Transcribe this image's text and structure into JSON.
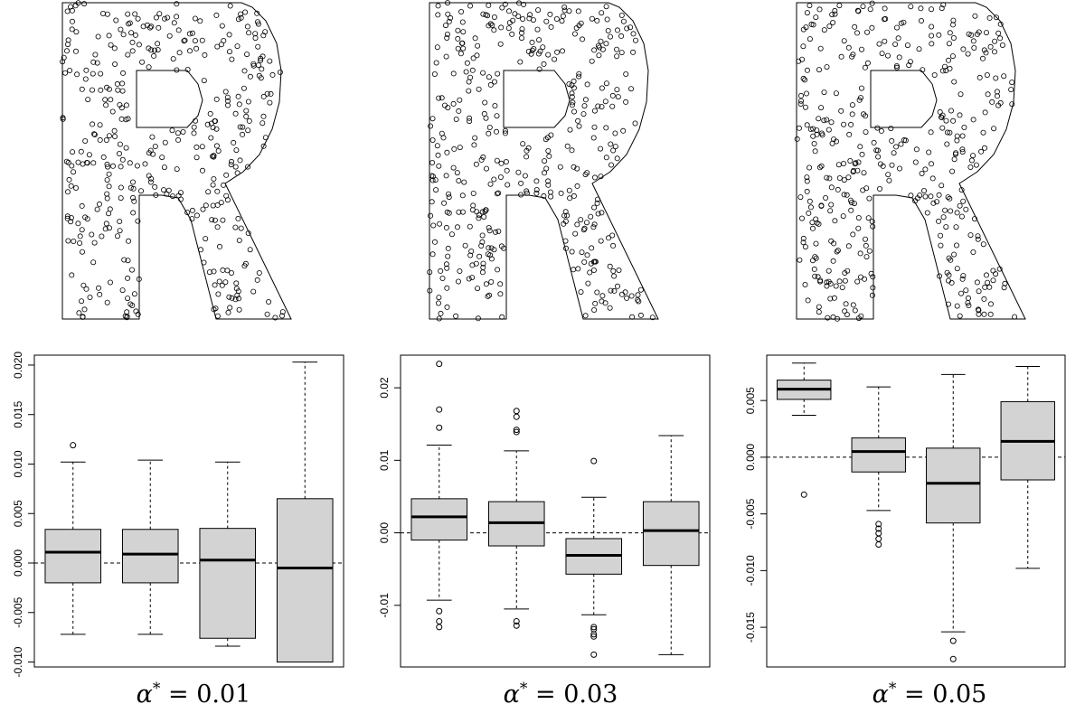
{
  "panels": [
    {
      "caption_symbol": "α",
      "caption_sup": "*",
      "caption_rest": " = 0.01"
    },
    {
      "caption_symbol": "α",
      "caption_sup": "*",
      "caption_rest": " = 0.03"
    },
    {
      "caption_symbol": "α",
      "caption_sup": "*",
      "caption_rest": " = 0.05"
    }
  ],
  "chart_data": [
    {
      "type": "scatter",
      "title": "",
      "description": "uniform point pattern inside R-shaped window",
      "n_points_approx": 400,
      "marker": "open-circle",
      "window_shape": "R",
      "seed": 11
    },
    {
      "type": "scatter",
      "title": "",
      "description": "uniform point pattern inside R-shaped window",
      "n_points_approx": 420,
      "marker": "open-circle",
      "window_shape": "R",
      "seed": 23
    },
    {
      "type": "scatter",
      "title": "",
      "description": "uniform point pattern inside R-shaped window",
      "n_points_approx": 410,
      "marker": "open-circle",
      "window_shape": "R",
      "seed": 37
    },
    {
      "type": "box",
      "ylim": [
        -0.0105,
        0.021
      ],
      "yticks": [
        -0.01,
        -0.005,
        0.0,
        0.005,
        0.01,
        0.015,
        0.02
      ],
      "ytick_labels": [
        "-0.010",
        "-0.005",
        "0.000",
        "0.005",
        "0.010",
        "0.015",
        "0.020"
      ],
      "reference_line": 0,
      "fill": "#d3d3d3",
      "boxes": [
        {
          "lower_whisker": -0.0072,
          "q1": -0.002,
          "median": 0.0011,
          "q3": 0.0034,
          "upper_whisker": 0.0102,
          "outliers": [
            0.0119
          ]
        },
        {
          "lower_whisker": -0.0072,
          "q1": -0.002,
          "median": 0.0009,
          "q3": 0.0034,
          "upper_whisker": 0.0104,
          "outliers": []
        },
        {
          "lower_whisker": -0.0084,
          "q1": -0.0076,
          "median": 0.0003,
          "q3": 0.0035,
          "upper_whisker": 0.0102,
          "outliers": []
        },
        {
          "lower_whisker": -0.01,
          "q1": -0.01,
          "median": -0.0005,
          "q3": 0.0065,
          "upper_whisker": 0.0203,
          "outliers": []
        }
      ]
    },
    {
      "type": "box",
      "ylim": [
        -0.0185,
        0.0245
      ],
      "yticks": [
        -0.01,
        0.0,
        0.01,
        0.02
      ],
      "ytick_labels": [
        "-0.01",
        "0.00",
        "0.01",
        "0.02"
      ],
      "reference_line": 0,
      "fill": "#d3d3d3",
      "boxes": [
        {
          "lower_whisker": -0.0093,
          "q1": -0.001,
          "median": 0.0022,
          "q3": 0.0047,
          "upper_whisker": 0.0121,
          "outliers": [
            0.0233,
            0.017,
            0.0145,
            -0.0122,
            -0.013,
            -0.0108
          ]
        },
        {
          "lower_whisker": -0.0105,
          "q1": -0.0018,
          "median": 0.0014,
          "q3": 0.0043,
          "upper_whisker": 0.0113,
          "outliers": [
            0.0168,
            0.016,
            0.0142,
            0.0139,
            -0.0122,
            -0.0128
          ]
        },
        {
          "lower_whisker": -0.0113,
          "q1": -0.0057,
          "median": -0.0031,
          "q3": -0.0008,
          "upper_whisker": 0.0049,
          "outliers": [
            0.0099,
            -0.013,
            -0.0133,
            -0.014,
            -0.0143,
            -0.0168
          ]
        },
        {
          "lower_whisker": -0.0168,
          "q1": -0.0045,
          "median": 0.0003,
          "q3": 0.0043,
          "upper_whisker": 0.0134,
          "outliers": []
        }
      ]
    },
    {
      "type": "box",
      "ylim": [
        -0.0185,
        0.009
      ],
      "yticks": [
        -0.015,
        -0.01,
        -0.005,
        0.0,
        0.005
      ],
      "ytick_labels": [
        "-0.015",
        "-0.010",
        "-0.005",
        "0.000",
        "0.005"
      ],
      "reference_line": 0,
      "fill": "#d3d3d3",
      "boxes": [
        {
          "lower_whisker": 0.0037,
          "q1": 0.0051,
          "median": 0.006,
          "q3": 0.0068,
          "upper_whisker": 0.0083,
          "outliers": [
            -0.0033
          ]
        },
        {
          "lower_whisker": -0.0047,
          "q1": -0.0013,
          "median": 0.0005,
          "q3": 0.0017,
          "upper_whisker": 0.0062,
          "outliers": [
            -0.0059,
            -0.0063,
            -0.0067,
            -0.0072,
            -0.0077
          ]
        },
        {
          "lower_whisker": -0.0154,
          "q1": -0.0058,
          "median": -0.0023,
          "q3": 0.0008,
          "upper_whisker": 0.0073,
          "outliers": [
            -0.0162,
            -0.0178
          ]
        },
        {
          "lower_whisker": -0.0098,
          "q1": -0.002,
          "median": 0.0014,
          "q3": 0.0049,
          "upper_whisker": 0.008,
          "outliers": []
        }
      ]
    }
  ]
}
